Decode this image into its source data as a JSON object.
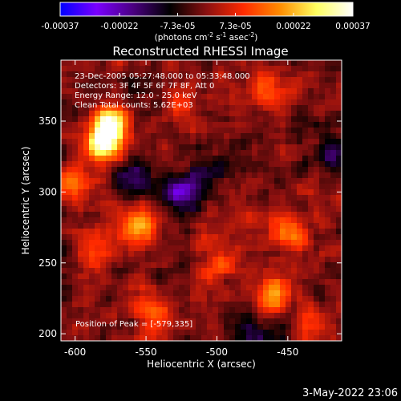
{
  "colorbar": {
    "tick_labels": [
      "-0.00037",
      "-0.00022",
      "-7.3e-05",
      "7.3e-05",
      "0.00022",
      "0.00037"
    ],
    "tick_values": [
      -0.00037,
      -0.00022,
      -7.3e-05,
      7.3e-05,
      0.00022,
      0.00037
    ],
    "range": [
      -0.00037,
      0.00037
    ],
    "units_main": "(photons cm",
    "units_exp1": "-2",
    "units_mid": " s",
    "units_exp2": "-1",
    "units_mid2": " asec",
    "units_exp3": "-2",
    "units_end": ")",
    "colors": [
      "#0000ff",
      "#7a00ff",
      "#4a0080",
      "#000000",
      "#8a1010",
      "#ff2a00",
      "#ff8c00",
      "#ffff60",
      "#ffffff"
    ]
  },
  "chart_data": {
    "type": "heatmap",
    "title": "Reconstructed RHESSI Image",
    "xlabel": "Heliocentric X (arcsec)",
    "ylabel": "Heliocentric Y (arcsec)",
    "xlim": [
      -610,
      -412
    ],
    "ylim": [
      195,
      393
    ],
    "x_ticks": [
      -600,
      -550,
      -500,
      -450
    ],
    "y_ticks": [
      200,
      250,
      300,
      350
    ],
    "x_tick_labels": [
      "-600",
      "-550",
      "-500",
      "-450"
    ],
    "y_tick_labels": [
      "200",
      "250",
      "300",
      "350"
    ],
    "peak_position": [
      -579,
      335
    ],
    "annotations": [
      "23-Dec-2005 05:27:48.000 to 05:33:48.000",
      "Detectors: 3F 4F 5F 6F 7F 8F, Att 0",
      "Energy Range: 12.0 - 25.0 keV",
      "Clean    Total counts: 5.62E+03"
    ],
    "peak_label": "Position of Peak = [-579,335]",
    "bright_sources": [
      {
        "x": -579,
        "y": 335,
        "value": 0.00037
      },
      {
        "x": -575,
        "y": 350,
        "value": 0.0003
      },
      {
        "x": -555,
        "y": 275,
        "value": 0.00022
      },
      {
        "x": -600,
        "y": 305,
        "value": 0.00018
      },
      {
        "x": -525,
        "y": 360,
        "value": 0.00012
      },
      {
        "x": -460,
        "y": 230,
        "value": 0.0002
      },
      {
        "x": -450,
        "y": 270,
        "value": 0.00016
      },
      {
        "x": -465,
        "y": 375,
        "value": 0.00015
      },
      {
        "x": -585,
        "y": 260,
        "value": 0.00014
      },
      {
        "x": -545,
        "y": 215,
        "value": 0.00015
      },
      {
        "x": -430,
        "y": 205,
        "value": 0.00012
      },
      {
        "x": -500,
        "y": 250,
        "value": 0.0001
      }
    ],
    "dim_sources": [
      {
        "x": -525,
        "y": 300,
        "value": -0.00022
      },
      {
        "x": -560,
        "y": 310,
        "value": -0.00015
      },
      {
        "x": -420,
        "y": 325,
        "value": -0.00013
      },
      {
        "x": -470,
        "y": 200,
        "value": -0.00012
      },
      {
        "x": -505,
        "y": 315,
        "value": -0.0001
      }
    ]
  },
  "footer": {
    "date": "3-May-2022 23:06"
  }
}
